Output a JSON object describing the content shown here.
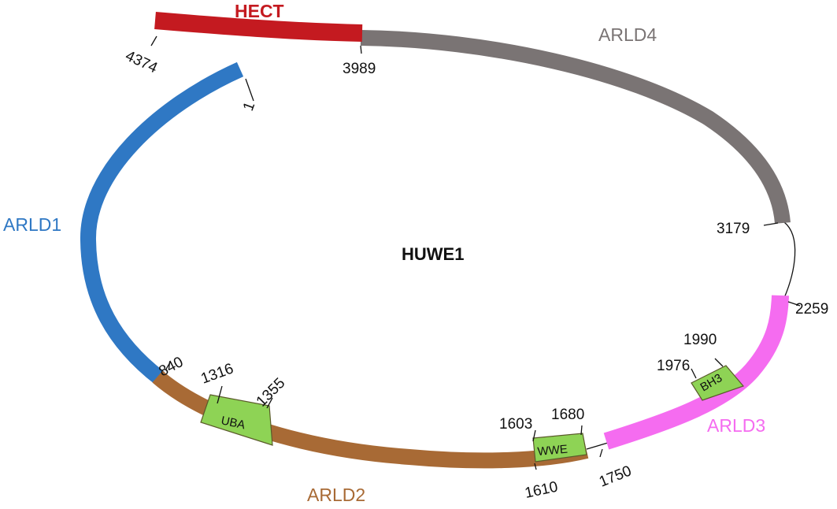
{
  "title": "HUWE1",
  "domains": [
    {
      "id": "arld1",
      "label": "ARLD1",
      "color": "#2f78c4",
      "start_label": "1",
      "end_label": "840"
    },
    {
      "id": "arld2",
      "label": "ARLD2",
      "color": "#a86a35",
      "start_label": "840",
      "end_label": "1750"
    },
    {
      "id": "arld3",
      "label": "ARLD3",
      "color": "#f56cf0",
      "start_label": "1750",
      "end_label": "2259"
    },
    {
      "id": "arld4",
      "label": "ARLD4",
      "color": "#7a7474",
      "start_label": "3179",
      "end_label": "3989"
    },
    {
      "id": "hect",
      "label": "HECT",
      "color": "#c41a20",
      "start_label": "3989",
      "end_label": "4374"
    }
  ],
  "motifs": [
    {
      "id": "uba",
      "label": "UBA",
      "color": "#8ed355",
      "start_label": "1316",
      "end_label": "1355"
    },
    {
      "id": "wwe",
      "label": "WWE",
      "color": "#8ed355",
      "start_label": "1603",
      "end_label": "1680",
      "extra_label": "1610"
    },
    {
      "id": "bh3",
      "label": "BH3",
      "color": "#8ed355",
      "start_label": "1976",
      "end_label": "1990"
    }
  ],
  "positions": [
    "1",
    "840",
    "1316",
    "1355",
    "1603",
    "1610",
    "1680",
    "1750",
    "1976",
    "1990",
    "2259",
    "3179",
    "3989",
    "4374"
  ]
}
